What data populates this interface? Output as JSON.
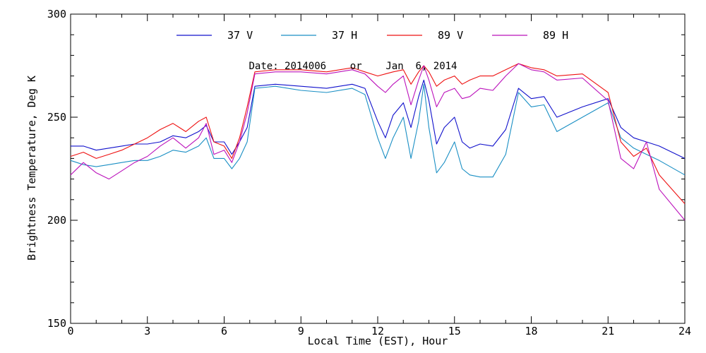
{
  "chart_data": {
    "type": "line",
    "title": "Date: 2014006    or    Jan  6, 2014",
    "xlabel": "Local Time (EST), Hour",
    "ylabel": "Brightness Temperature, Deg K",
    "xlim": [
      0,
      24
    ],
    "ylim": [
      150,
      300
    ],
    "xticks": [
      0,
      3,
      6,
      9,
      12,
      15,
      18,
      21,
      24
    ],
    "xtick_labels": [
      "0",
      "3",
      "6",
      "9",
      "12",
      "15",
      "18",
      "21",
      "24"
    ],
    "yticks": [
      150,
      200,
      250,
      300
    ],
    "ytick_labels": [
      "150",
      "200",
      "250",
      "300"
    ],
    "grid": false,
    "legend_position": "top",
    "series": [
      {
        "name": "37 V",
        "color": "#1010cc",
        "x": [
          0,
          0.5,
          1,
          1.5,
          2,
          2.5,
          3,
          3.5,
          4,
          4.5,
          5,
          5.3,
          5.6,
          6,
          6.3,
          6.6,
          6.9,
          7.2,
          8,
          9,
          10,
          11,
          11.5,
          12,
          12.3,
          12.6,
          13,
          13.3,
          13.6,
          13.8,
          14,
          14.3,
          14.6,
          15,
          15.3,
          15.6,
          16,
          16.5,
          17,
          17.5,
          18,
          18.5,
          19,
          20,
          21,
          21.5,
          22,
          22.5,
          23,
          24
        ],
        "values": [
          236,
          236,
          234,
          235,
          236,
          237,
          237,
          238,
          241,
          240,
          243,
          246,
          238,
          238,
          232,
          238,
          245,
          265,
          266,
          265,
          264,
          266,
          264,
          248,
          240,
          251,
          257,
          245,
          260,
          268,
          258,
          237,
          245,
          250,
          238,
          235,
          237,
          236,
          244,
          264,
          259,
          260,
          250,
          255,
          259,
          245,
          240,
          238,
          236,
          230
        ]
      },
      {
        "name": "37 H",
        "color": "#1a8fc4",
        "x": [
          0,
          0.5,
          1,
          1.5,
          2,
          2.5,
          3,
          3.5,
          4,
          4.5,
          5,
          5.3,
          5.6,
          6,
          6.3,
          6.6,
          6.9,
          7.2,
          8,
          9,
          10,
          11,
          11.5,
          12,
          12.3,
          12.6,
          13,
          13.3,
          13.6,
          13.8,
          14,
          14.3,
          14.6,
          15,
          15.3,
          15.6,
          16,
          16.5,
          17,
          17.5,
          18,
          18.5,
          19,
          20,
          21,
          21.5,
          22,
          22.5,
          23,
          24
        ],
        "values": [
          229,
          227,
          226,
          227,
          228,
          229,
          229,
          231,
          234,
          233,
          236,
          240,
          230,
          230,
          225,
          230,
          238,
          264,
          265,
          263,
          262,
          264,
          261,
          240,
          230,
          240,
          250,
          230,
          248,
          266,
          245,
          223,
          228,
          238,
          225,
          222,
          221,
          221,
          232,
          262,
          255,
          256,
          243,
          250,
          257,
          240,
          235,
          232,
          229,
          222
        ]
      },
      {
        "name": "89 V",
        "color": "#ee1111",
        "x": [
          0,
          0.5,
          1,
          1.5,
          2,
          2.5,
          3,
          3.5,
          4,
          4.5,
          5,
          5.3,
          5.6,
          6,
          6.3,
          6.6,
          6.9,
          7.2,
          8,
          9,
          10,
          11,
          11.5,
          12,
          12.3,
          12.6,
          13,
          13.3,
          13.6,
          13.8,
          14,
          14.3,
          14.6,
          15,
          15.3,
          15.6,
          16,
          16.5,
          17,
          17.5,
          18,
          18.5,
          19,
          20,
          21,
          21.5,
          22,
          22.5,
          23,
          24
        ],
        "values": [
          231,
          233,
          230,
          232,
          234,
          237,
          240,
          244,
          247,
          243,
          248,
          250,
          238,
          236,
          230,
          240,
          255,
          272,
          273,
          273,
          272,
          274,
          272,
          270,
          271,
          272,
          273,
          266,
          272,
          275,
          272,
          265,
          268,
          270,
          266,
          268,
          270,
          270,
          273,
          276,
          274,
          273,
          270,
          271,
          262,
          238,
          231,
          235,
          222,
          208
        ]
      },
      {
        "name": "89 H",
        "color": "#bb11bb",
        "x": [
          0,
          0.5,
          1,
          1.5,
          2,
          2.5,
          3,
          3.5,
          4,
          4.5,
          5,
          5.3,
          5.6,
          6,
          6.3,
          6.6,
          6.9,
          7.2,
          8,
          9,
          10,
          11,
          11.5,
          12,
          12.3,
          12.6,
          13,
          13.3,
          13.6,
          13.8,
          14,
          14.3,
          14.6,
          15,
          15.3,
          15.6,
          16,
          16.5,
          17,
          17.5,
          18,
          18.5,
          19,
          20,
          21,
          21.5,
          22,
          22.5,
          23,
          24
        ],
        "values": [
          222,
          228,
          223,
          220,
          224,
          228,
          231,
          236,
          240,
          235,
          240,
          247,
          232,
          234,
          228,
          238,
          252,
          271,
          272,
          272,
          271,
          273,
          271,
          265,
          262,
          266,
          270,
          256,
          268,
          275,
          268,
          255,
          262,
          264,
          259,
          260,
          264,
          263,
          270,
          276,
          273,
          272,
          268,
          269,
          258,
          230,
          225,
          238,
          215,
          200
        ]
      }
    ]
  }
}
